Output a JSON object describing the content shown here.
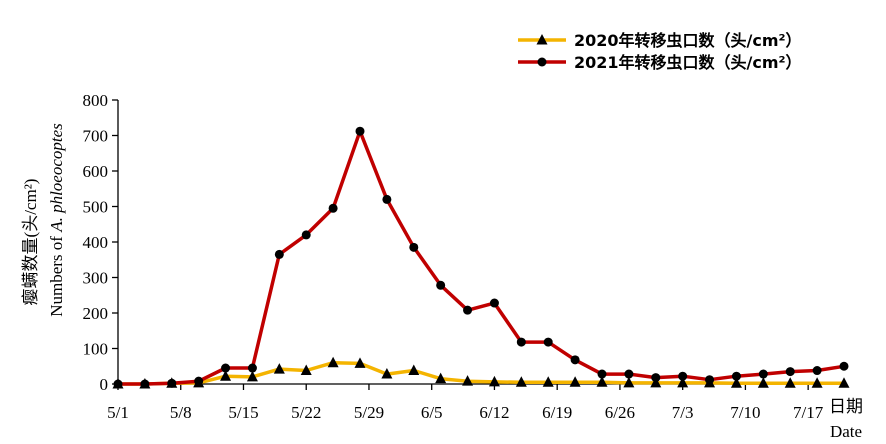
{
  "chart_data": {
    "type": "line",
    "title": "",
    "xlabel_line1": "日期",
    "xlabel_line2": "Date",
    "ylabel_line1": "瘿螨数量(头/cm²)",
    "ylabel_line2_prefix": "Numbers of ",
    "ylabel_line2_species": "A. phloeocoptes",
    "ylim": [
      0,
      800
    ],
    "yticks": [
      0,
      100,
      200,
      300,
      400,
      500,
      600,
      700,
      800
    ],
    "xtick_labels": [
      "5/1",
      "5/8",
      "5/15",
      "5/22",
      "5/29",
      "6/5",
      "6/12",
      "6/19",
      "6/26",
      "7/3",
      "7/10",
      "7/17"
    ],
    "x_dates": [
      "5/1",
      "5/4",
      "5/7",
      "5/10",
      "5/13",
      "5/16",
      "5/19",
      "5/22",
      "5/25",
      "5/28",
      "5/31",
      "6/3",
      "6/6",
      "6/9",
      "6/12",
      "6/15",
      "6/18",
      "6/21",
      "6/24",
      "6/27",
      "6/30",
      "7/3",
      "7/6",
      "7/9",
      "7/12",
      "7/15",
      "7/18",
      "7/21"
    ],
    "series": [
      {
        "name": "2020年转移虫口数（头/cm²）",
        "color": "#F4B400",
        "marker": "triangle",
        "values": [
          0,
          0,
          2,
          3,
          22,
          20,
          42,
          38,
          60,
          58,
          28,
          38,
          15,
          8,
          6,
          5,
          5,
          5,
          5,
          3,
          3,
          3,
          3,
          2,
          2,
          2,
          2,
          2
        ]
      },
      {
        "name": "2021年转移虫口数（头/cm²）",
        "color": "#C00000",
        "marker": "circle",
        "values": [
          0,
          0,
          2,
          8,
          45,
          45,
          365,
          420,
          495,
          712,
          520,
          385,
          278,
          208,
          228,
          118,
          118,
          68,
          28,
          28,
          18,
          22,
          12,
          22,
          28,
          35,
          38,
          50
        ]
      }
    ],
    "legend_position": "top-right",
    "grid": false
  }
}
